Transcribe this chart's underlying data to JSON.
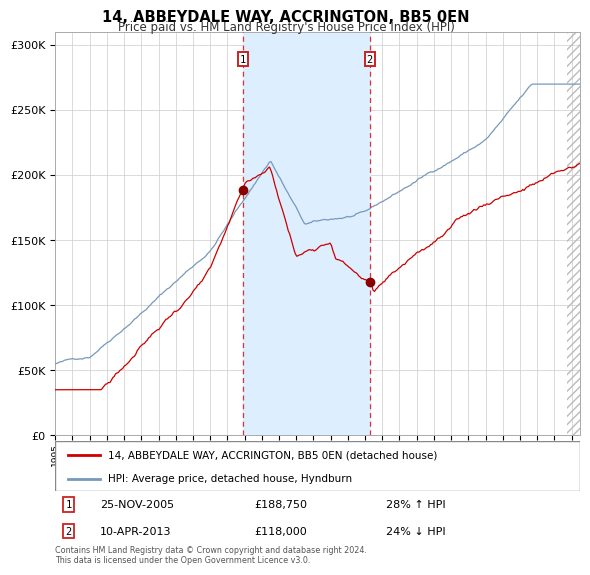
{
  "title": "14, ABBEYDALE WAY, ACCRINGTON, BB5 0EN",
  "subtitle": "Price paid vs. HM Land Registry's House Price Index (HPI)",
  "xlim_start": 1995.0,
  "xlim_end": 2025.5,
  "ylim": [
    0,
    310000
  ],
  "yticks": [
    0,
    50000,
    100000,
    150000,
    200000,
    250000,
    300000
  ],
  "ytick_labels": [
    "£0",
    "£50K",
    "£100K",
    "£150K",
    "£200K",
    "£250K",
    "£300K"
  ],
  "sale1_year": 2005.9,
  "sale1_price": 188750,
  "sale1_label": "25-NOV-2005",
  "sale1_pct": "28% ↑ HPI",
  "sale2_year": 2013.27,
  "sale2_price": 118000,
  "sale2_label": "10-APR-2013",
  "sale2_pct": "24% ↓ HPI",
  "red_color": "#cc0000",
  "blue_color": "#7799bb",
  "shade_color": "#ddeeff",
  "marker_color": "#880000",
  "vline_color": "#dd3333",
  "grid_color": "#cccccc",
  "bg_color": "#ffffff",
  "legend_label_red": "14, ABBEYDALE WAY, ACCRINGTON, BB5 0EN (detached house)",
  "legend_label_blue": "HPI: Average price, detached house, Hyndburn",
  "footnote": "Contains HM Land Registry data © Crown copyright and database right 2024.\nThis data is licensed under the Open Government Licence v3.0."
}
